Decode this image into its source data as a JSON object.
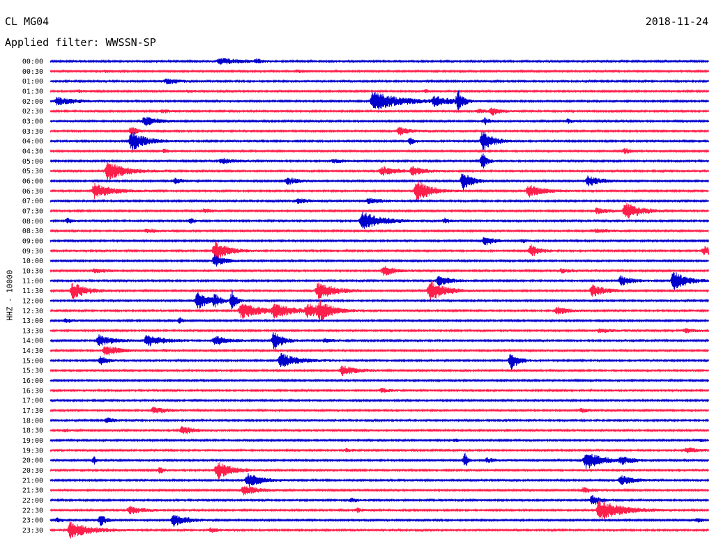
{
  "header": {
    "station": "CL MG04",
    "date": "2018-11-24",
    "filter": "Applied filter: WWSSN-SP"
  },
  "chart_data": {
    "type": "line",
    "title": "CL MG04",
    "ylabel": "HHZ - 10000",
    "row_labels": [
      "00:00",
      "00:30",
      "01:00",
      "01:30",
      "02:00",
      "02:30",
      "03:00",
      "03:30",
      "04:00",
      "04:30",
      "05:00",
      "05:30",
      "06:00",
      "06:30",
      "07:00",
      "07:30",
      "08:00",
      "08:30",
      "09:00",
      "09:30",
      "10:00",
      "10:30",
      "11:00",
      "11:30",
      "12:00",
      "12:30",
      "13:00",
      "13:30",
      "14:00",
      "14:30",
      "15:00",
      "15:30",
      "16:00",
      "16:30",
      "17:00",
      "17:30",
      "18:00",
      "18:30",
      "19:00",
      "19:30",
      "20:00",
      "20:30",
      "21:00",
      "21:30",
      "22:00",
      "22:30",
      "23:00",
      "23:30"
    ],
    "colors": [
      "#0000cc",
      "#ff1f4b"
    ],
    "x_range_minutes": [
      0,
      30
    ],
    "events": [
      [
        [
          7.6,
          5,
          2.5
        ],
        [
          9.3,
          3,
          0.4
        ]
      ],
      [
        [
          2.4,
          2,
          0.8
        ],
        [
          11.2,
          2,
          0.8
        ]
      ],
      [
        [
          5.2,
          4,
          1.5
        ]
      ],
      [
        [
          1.2,
          2,
          0.8
        ],
        [
          6.2,
          2,
          0.8
        ],
        [
          17,
          2,
          0.8
        ]
      ],
      [
        [
          0.2,
          6,
          2
        ],
        [
          14.6,
          14,
          3
        ],
        [
          17.4,
          6,
          2
        ],
        [
          18.5,
          14,
          0.5
        ]
      ],
      [
        [
          5,
          3,
          1
        ],
        [
          20,
          6,
          1
        ],
        [
          19.4,
          3,
          1
        ]
      ],
      [
        [
          4.2,
          7,
          1.5
        ],
        [
          19.7,
          5,
          0.6
        ],
        [
          23.5,
          3,
          0.6
        ]
      ],
      [
        [
          3.6,
          8,
          0.6
        ],
        [
          15.8,
          6,
          1.2
        ]
      ],
      [
        [
          3.6,
          15,
          1.5
        ],
        [
          16.3,
          5,
          0.6
        ],
        [
          19.6,
          15,
          1.2
        ]
      ],
      [
        [
          5.1,
          3,
          0.6
        ],
        [
          26.1,
          4,
          0.6
        ]
      ],
      [
        [
          7.7,
          4,
          1.5
        ],
        [
          12.8,
          3,
          1.2
        ],
        [
          19.6,
          13,
          0.5
        ]
      ],
      [
        [
          2.5,
          14,
          2
        ],
        [
          15,
          7,
          1.5
        ],
        [
          16.4,
          6,
          1.5
        ]
      ],
      [
        [
          5.6,
          4,
          1
        ],
        [
          10.7,
          6,
          1.2
        ],
        [
          18.7,
          14,
          1
        ],
        [
          24.4,
          7,
          1.5
        ]
      ],
      [
        [
          1.9,
          11,
          2
        ],
        [
          16.6,
          16,
          1.5
        ],
        [
          21.7,
          9,
          1.6
        ]
      ],
      [
        [
          11.2,
          4,
          1
        ],
        [
          14.4,
          4,
          1.5
        ]
      ],
      [
        [
          6.9,
          3,
          1
        ],
        [
          24.8,
          4,
          1.5
        ],
        [
          26.1,
          12,
          1.8
        ]
      ],
      [
        [
          0.7,
          4,
          0.5
        ],
        [
          6.3,
          5,
          0.4
        ],
        [
          14.1,
          14,
          2
        ],
        [
          17.9,
          5,
          0.4
        ]
      ],
      [
        [
          4.3,
          3,
          1.5
        ],
        [
          24.8,
          3,
          1.5
        ]
      ],
      [
        [
          19.7,
          7,
          1
        ],
        [
          21.4,
          3,
          0.5
        ]
      ],
      [
        [
          7.4,
          14,
          1.5
        ],
        [
          21.8,
          9,
          1
        ],
        [
          29.7,
          6,
          1.5
        ]
      ],
      [
        [
          7.4,
          9,
          1
        ]
      ],
      [
        [
          1.9,
          3,
          1.5
        ],
        [
          15.1,
          8,
          1.2
        ],
        [
          23.2,
          3,
          1.5
        ]
      ],
      [
        [
          17.6,
          8,
          1.2
        ],
        [
          25.9,
          7,
          1.2
        ],
        [
          28.3,
          14,
          1.5
        ]
      ],
      [
        [
          0.9,
          12,
          1.5
        ],
        [
          12.1,
          12,
          2
        ],
        [
          17.2,
          16,
          1.6
        ],
        [
          24.6,
          9,
          1.5
        ]
      ],
      [
        [
          6.6,
          13,
          1.2
        ],
        [
          7.4,
          8,
          0.6
        ],
        [
          8.2,
          14,
          0.5
        ]
      ],
      [
        [
          8.6,
          11,
          2.4
        ],
        [
          10.1,
          9,
          2
        ],
        [
          11.6,
          9,
          2.2
        ],
        [
          12.2,
          10,
          1.2
        ],
        [
          23,
          6,
          1.2
        ]
      ],
      [
        [
          0.6,
          3,
          0.8
        ],
        [
          5.8,
          4,
          0.5
        ]
      ],
      [
        [
          24.9,
          3,
          1.6
        ],
        [
          28.8,
          3,
          1.5
        ]
      ],
      [
        [
          2.1,
          8,
          1.6
        ],
        [
          4.3,
          9,
          1.8
        ],
        [
          7.4,
          7,
          1.5
        ],
        [
          10.1,
          14,
          1
        ],
        [
          12.4,
          3,
          1
        ]
      ],
      [
        [
          2.4,
          8,
          1.5
        ],
        [
          5.1,
          2,
          0.5
        ]
      ],
      [
        [
          2.2,
          6,
          0.8
        ],
        [
          10.4,
          11,
          1.8
        ],
        [
          20.9,
          13,
          0.8
        ]
      ],
      [
        [
          13.2,
          7,
          1.7
        ]
      ],
      [
        []
      ],
      [
        [
          15,
          3,
          1.2
        ]
      ],
      [
        []
      ],
      [
        [
          4.6,
          5,
          1.5
        ],
        [
          24.1,
          3,
          1
        ]
      ],
      [
        [
          2.5,
          4,
          0.8
        ]
      ],
      [
        [
          0.6,
          2,
          0.6
        ],
        [
          5.9,
          6,
          1.4
        ]
      ],
      [
        [
          18.3,
          2,
          0.8
        ],
        [
          29.5,
          2,
          0.8
        ]
      ],
      [
        [
          13.4,
          3,
          0.6
        ],
        [
          28.9,
          4,
          1.5
        ]
      ],
      [
        [
          1.9,
          6,
          0.2
        ],
        [
          18.8,
          11,
          0.3
        ],
        [
          19.8,
          4,
          1
        ],
        [
          24.3,
          13,
          1.8
        ],
        [
          25.9,
          5,
          1.4
        ]
      ],
      [
        [
          4.9,
          5,
          0.4
        ],
        [
          7.5,
          13,
          1.6
        ]
      ],
      [
        [
          8.9,
          10,
          1.6
        ],
        [
          25.9,
          7,
          1.5
        ]
      ],
      [
        [
          8.7,
          7,
          1.6
        ],
        [
          24.2,
          4,
          1.2
        ]
      ],
      [
        [
          13.6,
          3,
          0.8
        ],
        [
          24.6,
          8,
          0.8
        ]
      ],
      [
        [
          3.5,
          6,
          1.5
        ],
        [
          13.9,
          3,
          0.8
        ],
        [
          24.9,
          15,
          2.5
        ]
      ],
      [
        [
          0.2,
          3,
          0.8
        ],
        [
          2.2,
          9,
          0.6
        ],
        [
          5.5,
          9,
          1.5
        ],
        [
          29.4,
          3,
          0.8
        ]
      ],
      [
        [
          0.8,
          12,
          2.2
        ],
        [
          7.2,
          3,
          1
        ]
      ]
    ]
  }
}
